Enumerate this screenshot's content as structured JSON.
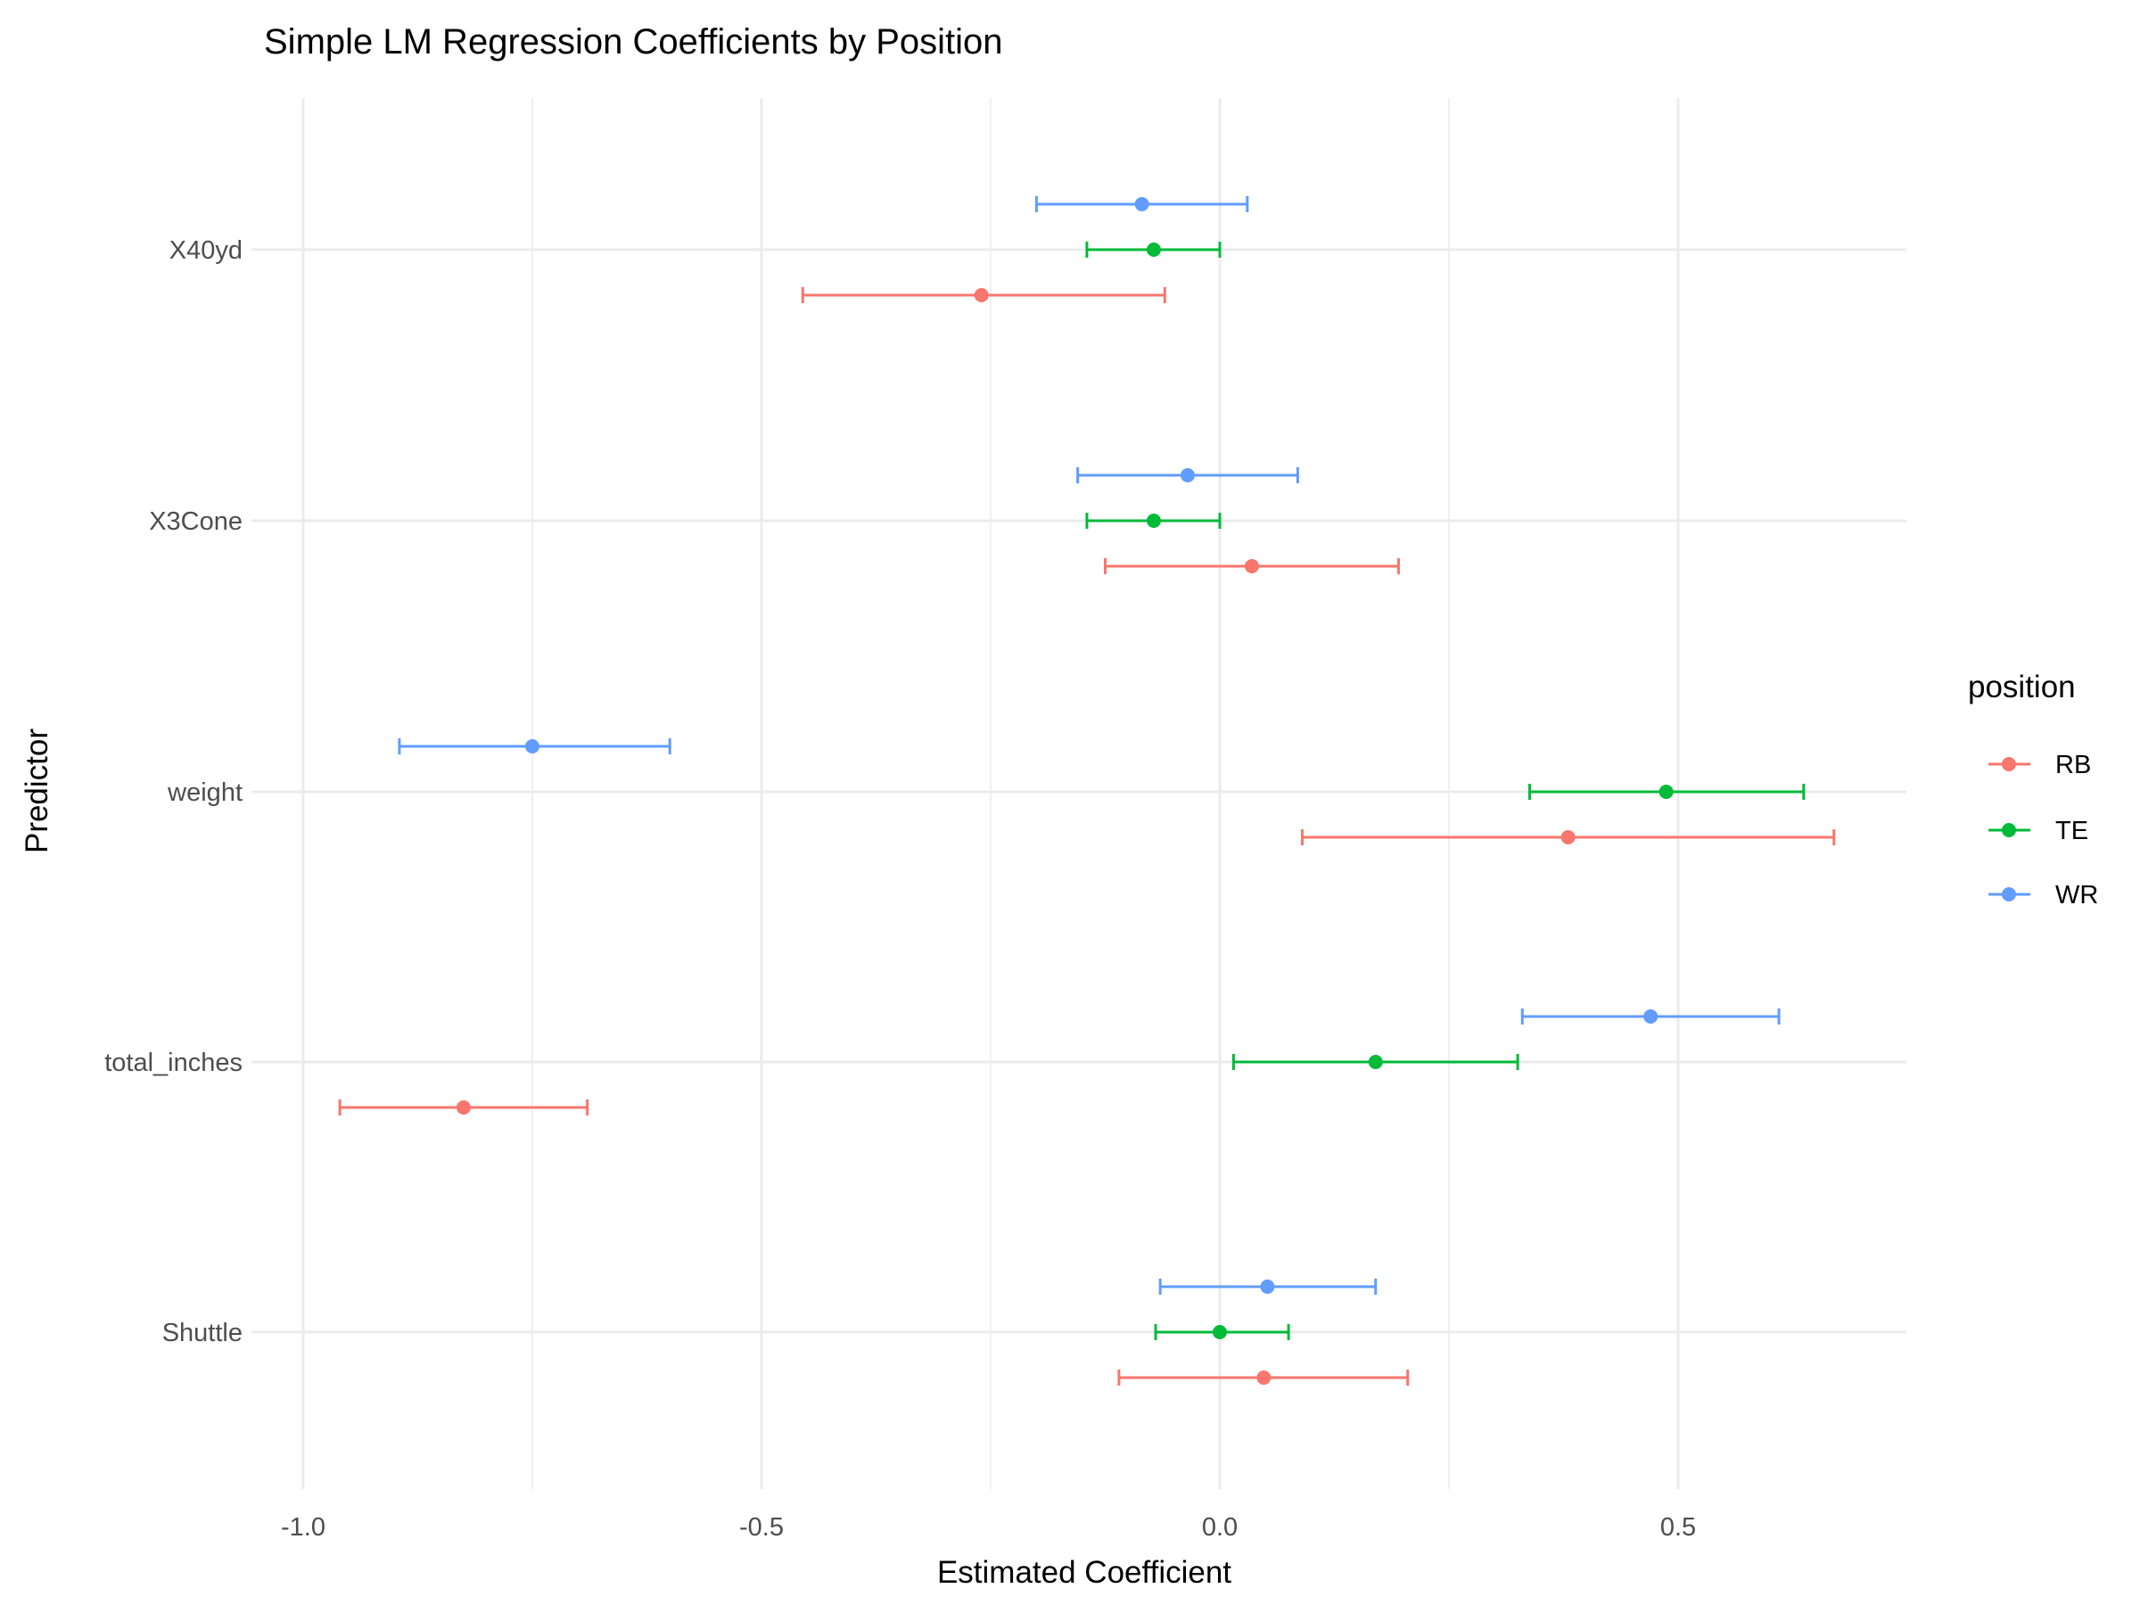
{
  "chart_data": {
    "type": "scatter",
    "title": "Simple LM Regression Coefficients by Position",
    "xlabel": "Estimated Coefficient",
    "ylabel": "Predictor",
    "xlim": [
      -1.0,
      0.75
    ],
    "x_ticks": [
      -1.0,
      -0.5,
      0.0,
      0.5
    ],
    "x_tick_labels": [
      "-1.0",
      "-0.5",
      "0.0",
      "0.5"
    ],
    "categories": [
      "X40yd",
      "X3Cone",
      "weight",
      "total_inches",
      "Shuttle"
    ],
    "grid": true,
    "legend": {
      "title": "position",
      "placement": "right",
      "entries": [
        "RB",
        "TE",
        "WR"
      ]
    },
    "series": [
      {
        "name": "RB",
        "color": "#F8766D",
        "points": [
          {
            "category": "X40yd",
            "estimate": -0.26,
            "lower": -0.455,
            "upper": -0.06
          },
          {
            "category": "X3Cone",
            "estimate": 0.035,
            "lower": -0.125,
            "upper": 0.195
          },
          {
            "category": "weight",
            "estimate": 0.38,
            "lower": 0.09,
            "upper": 0.67
          },
          {
            "category": "total_inches",
            "estimate": -0.825,
            "lower": -0.96,
            "upper": -0.69
          },
          {
            "category": "Shuttle",
            "estimate": 0.048,
            "lower": -0.11,
            "upper": 0.205
          }
        ]
      },
      {
        "name": "TE",
        "color": "#00BA38",
        "points": [
          {
            "category": "X40yd",
            "estimate": -0.072,
            "lower": -0.145,
            "upper": 0.0
          },
          {
            "category": "X3Cone",
            "estimate": -0.072,
            "lower": -0.145,
            "upper": 0.0
          },
          {
            "category": "weight",
            "estimate": 0.487,
            "lower": 0.338,
            "upper": 0.637
          },
          {
            "category": "total_inches",
            "estimate": 0.17,
            "lower": 0.015,
            "upper": 0.325
          },
          {
            "category": "Shuttle",
            "estimate": 0.0,
            "lower": -0.07,
            "upper": 0.075
          }
        ]
      },
      {
        "name": "WR",
        "color": "#619CFF",
        "points": [
          {
            "category": "X40yd",
            "estimate": -0.085,
            "lower": -0.2,
            "upper": 0.03
          },
          {
            "category": "X3Cone",
            "estimate": -0.035,
            "lower": -0.155,
            "upper": 0.085
          },
          {
            "category": "weight",
            "estimate": -0.75,
            "lower": -0.895,
            "upper": -0.6
          },
          {
            "category": "total_inches",
            "estimate": 0.47,
            "lower": 0.33,
            "upper": 0.61
          },
          {
            "category": "Shuttle",
            "estimate": 0.052,
            "lower": -0.065,
            "upper": 0.17
          }
        ]
      }
    ]
  }
}
